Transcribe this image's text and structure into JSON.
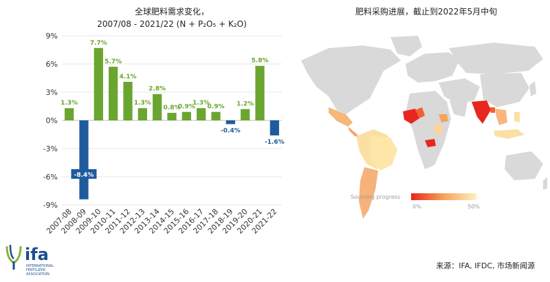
{
  "chart_data": {
    "type": "bar",
    "title_line1": "全球肥料需求变化，",
    "title_line2": "2007/08 - 2021/22 (N + P₂O₅ + K₂O)",
    "categories": [
      "2007-08",
      "2008-09",
      "2009-10",
      "2010-11",
      "2011-12",
      "2012-13",
      "2013-14",
      "2014-15",
      "2015-16",
      "2016-17",
      "2017-18",
      "2018-19",
      "2019-20",
      "2020-21",
      "2021-22"
    ],
    "values": [
      1.3,
      -8.4,
      7.7,
      5.7,
      4.1,
      1.3,
      2.8,
      0.8,
      0.9,
      1.3,
      0.9,
      -0.4,
      1.2,
      5.8,
      -1.6
    ],
    "data_labels": [
      "1.3%",
      "-8.4%",
      "7.7%",
      "5.7%",
      "4.1%",
      "1.3%",
      "2.8%",
      "0.8%",
      "0.9%",
      "1.3%",
      "0.9%",
      "-0.4%",
      "1.2%",
      "5.8%",
      "-1.6%"
    ],
    "y_ticks": [
      -9,
      -6,
      -3,
      0,
      3,
      6,
      9
    ],
    "y_tick_labels": [
      "-9%",
      "-6%",
      "-3%",
      "0%",
      "3%",
      "6%",
      "9%"
    ],
    "ylim": [
      -9,
      9
    ],
    "positive_color": "#6aa62f",
    "negative_color": "#1f5b9c",
    "grid": true
  },
  "map": {
    "title": "肥料采购进展，截止到2022年5月中旬",
    "legend_title": "Sourcing progress",
    "legend_min": "0%",
    "legend_max": "50%",
    "land_color": "#d9d9d9",
    "gradient_start": "#e8261f",
    "gradient_end": "#fdf1c0"
  },
  "source": "来源：IFA, IFDC, 市场新闻源",
  "logo": {
    "text": "ifa",
    "subtitle": "INTERNATIONAL FERTILIZER ASSOCIATION"
  }
}
